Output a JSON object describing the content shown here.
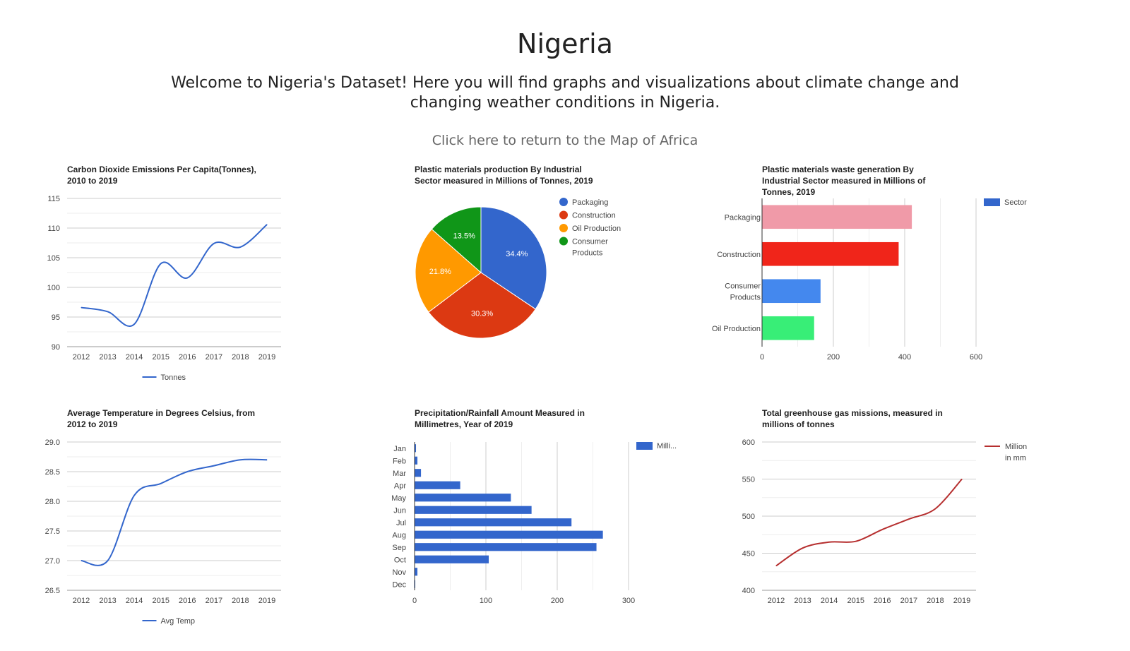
{
  "header": {
    "title": "Nigeria",
    "intro": "Welcome to Nigeria's Dataset! Here you will find graphs and visualizations about climate change and changing weather conditions in Nigeria.",
    "return_link": "Click here to return to the Map of Africa"
  },
  "colors": {
    "blue": "#3366cc",
    "red": "#b62f2f",
    "grid": "#dddddd",
    "axis": "#333333",
    "text": "#444444"
  },
  "chart_data": [
    {
      "id": "co2",
      "type": "line",
      "title": "Carbon Dioxide Emissions Per Capita(Tonnes), 2010 to 2019",
      "x": [
        "2012",
        "2013",
        "2014",
        "2015",
        "2016",
        "2017",
        "2018",
        "2019"
      ],
      "series": [
        {
          "name": "Tonnes",
          "values": [
            96.6,
            95.9,
            93.8,
            104.0,
            101.6,
            107.4,
            106.8,
            110.6
          ],
          "color": "#3366cc"
        }
      ],
      "ylim": [
        90,
        115
      ],
      "yticks": [
        90,
        95,
        100,
        105,
        110,
        115
      ],
      "grid": true,
      "legend": "bottom"
    },
    {
      "id": "plastic-prod",
      "type": "pie",
      "title": "Plastic materials production By Industrial Sector measured in Millions of Tonnes, 2019",
      "slices": [
        {
          "label": "Packaging",
          "value": 34.4,
          "display": "34.4%",
          "color": "#3366cc"
        },
        {
          "label": "Construction",
          "value": 30.3,
          "display": "30.3%",
          "color": "#dc3912"
        },
        {
          "label": "Oil Production",
          "value": 21.8,
          "display": "21.8%",
          "color": "#ff9900"
        },
        {
          "label": "Consumer Products",
          "value": 13.5,
          "display": "13.5%",
          "color": "#109618"
        }
      ],
      "legend": "right"
    },
    {
      "id": "plastic-waste",
      "type": "bar",
      "orientation": "horizontal",
      "title": "Plastic materials waste generation By Industrial Sector measured in Millions of Tonnes, 2019",
      "categories": [
        "Packaging",
        "Construction",
        "Consumer Products",
        "Oil Production"
      ],
      "values": [
        420,
        383,
        164,
        146
      ],
      "bar_colors": [
        "#f09aa8",
        "#f0251a",
        "#4488ee",
        "#38ee77"
      ],
      "series_name": "Sector",
      "xlim": [
        0,
        600
      ],
      "xticks": [
        0,
        200,
        400,
        600
      ],
      "grid": true,
      "legend": "right"
    },
    {
      "id": "temp",
      "type": "line",
      "title": "Average Temperature in Degrees Celsius, from 2012 to 2019",
      "x": [
        "2012",
        "2013",
        "2014",
        "2015",
        "2016",
        "2017",
        "2018",
        "2019"
      ],
      "series": [
        {
          "name": "Avg Temp",
          "values": [
            27.0,
            27.0,
            28.1,
            28.3,
            28.5,
            28.6,
            28.7,
            28.7
          ],
          "color": "#3366cc"
        }
      ],
      "ylim": [
        26.5,
        29.0
      ],
      "yticks": [
        "26.5",
        "27.0",
        "27.5",
        "28.0",
        "28.5",
        "29.0"
      ],
      "grid": true,
      "legend": "bottom"
    },
    {
      "id": "rain",
      "type": "bar",
      "orientation": "horizontal",
      "title": "Precipitation/Rainfall Amount Measured in Millimetres, Year of 2019",
      "categories": [
        "Jan",
        "Feb",
        "Mar",
        "Apr",
        "May",
        "Jun",
        "Jul",
        "Aug",
        "Sep",
        "Oct",
        "Nov",
        "Dec"
      ],
      "values": [
        2,
        4,
        9,
        64,
        135,
        164,
        220,
        264,
        255,
        104,
        4,
        1
      ],
      "series_name": "Milli...",
      "color": "#3366cc",
      "xlim": [
        0,
        300
      ],
      "xticks": [
        0,
        100,
        200,
        300
      ],
      "grid": true,
      "legend": "right"
    },
    {
      "id": "ghg",
      "type": "line",
      "title": "Total greenhouse gas missions, measured in millions of tonnes",
      "x": [
        "2012",
        "2013",
        "2014",
        "2015",
        "2016",
        "2017",
        "2018",
        "2019"
      ],
      "series": [
        {
          "name": "Million in mm",
          "values": [
            433,
            457,
            465,
            466,
            482,
            496,
            510,
            550
          ],
          "color": "#b62f2f"
        }
      ],
      "ylim": [
        400,
        600
      ],
      "yticks": [
        400,
        450,
        500,
        550,
        600
      ],
      "grid": true,
      "legend": "right"
    }
  ]
}
